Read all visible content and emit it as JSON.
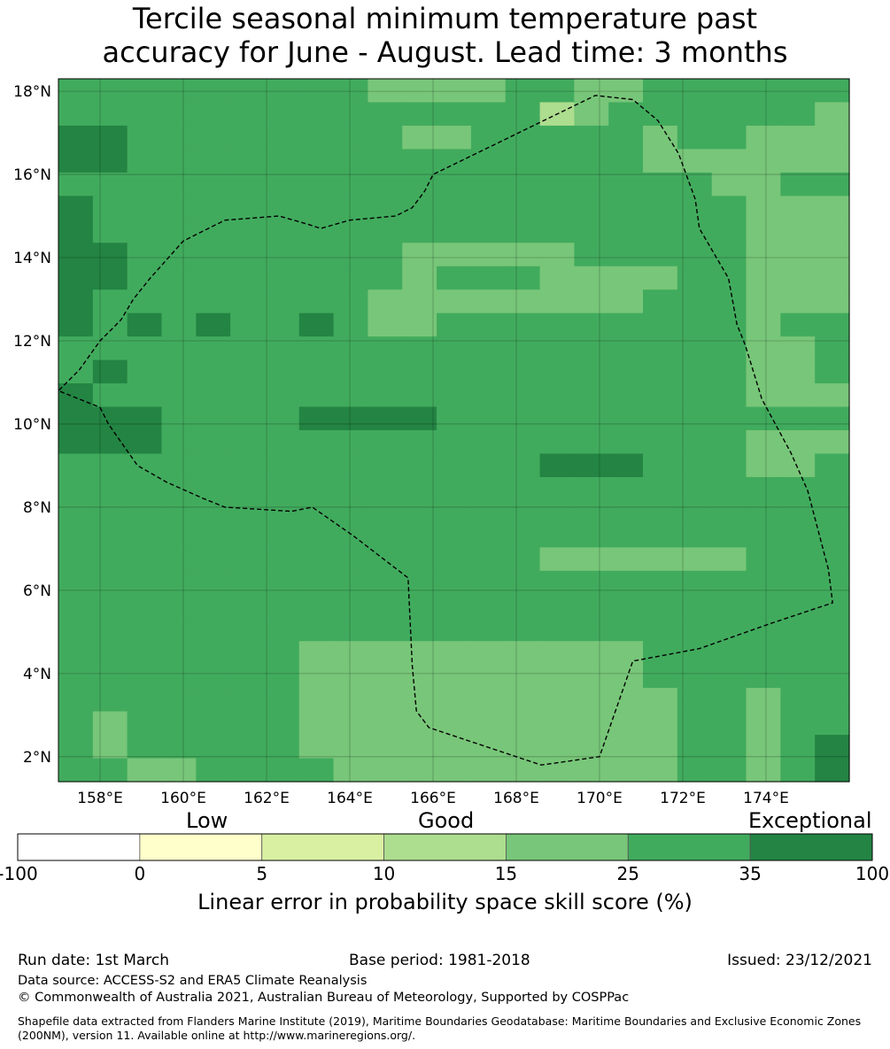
{
  "title_line1": "Tercile seasonal minimum temperature past",
  "title_line2": "accuracy for June - August. Lead time: 3 months",
  "map": {
    "lon_range": [
      157,
      176
    ],
    "lat_range": [
      1.4,
      18.3
    ],
    "x_ticks": [
      {
        "value": 158,
        "label": "158°E"
      },
      {
        "value": 160,
        "label": "160°E"
      },
      {
        "value": 162,
        "label": "162°E"
      },
      {
        "value": 164,
        "label": "164°E"
      },
      {
        "value": 166,
        "label": "166°E"
      },
      {
        "value": 168,
        "label": "168°E"
      },
      {
        "value": 170,
        "label": "170°E"
      },
      {
        "value": 172,
        "label": "172°E"
      },
      {
        "value": 174,
        "label": "174°E"
      }
    ],
    "y_ticks": [
      {
        "value": 18,
        "label": "18°N"
      },
      {
        "value": 16,
        "label": "16°N"
      },
      {
        "value": 14,
        "label": "14°N"
      },
      {
        "value": 12,
        "label": "12°N"
      },
      {
        "value": 10,
        "label": "10°N"
      },
      {
        "value": 8,
        "label": "8°N"
      },
      {
        "value": 6,
        "label": "6°N"
      },
      {
        "value": 4,
        "label": "4°N"
      },
      {
        "value": 2,
        "label": "2°N"
      }
    ],
    "gridlines": true,
    "cell_columns": 23,
    "cell_rows": 30,
    "cell_value_scale": "0=<0, 1=0-5, 2=5-10, 3=10-15, 4=15-25, 5=25-35, 6=35-100",
    "cells": [
      "55555555544445544555555",
      "55555555555555345555554",
      "66555555554455555455444",
      "66555555555555555444444",
      "55555555555555555554455",
      "65555555555555555555444",
      "65555555555555555555444",
      "66555555554444455555444",
      "66555555554555444455444",
      "65555555544444444555444",
      "65656556544555555555455",
      "55555555555555555555445",
      "56555555555555555555445",
      "65555555555555555555444",
      "66655556666555555555555",
      "66655555555555555555444",
      "55555555555555666555445",
      "55555555555555555555555",
      "55555555555555555555555",
      "55555555555555555555555",
      "55555555555555444444555",
      "55555555555555555555555",
      "55555555555555555555555",
      "55555555555555555555555",
      "55555554444444444555555",
      "55555554444444444555555",
      "55555554444444444455455",
      "54555554444444444455455",
      "54555554444444444455456",
      "55445555444444444455456"
    ],
    "dateline_note": "",
    "boundary_lon_lat": [
      [
        158.0,
        10.4
      ],
      [
        158.2,
        10.0
      ],
      [
        158.9,
        9.0
      ],
      [
        159.6,
        8.6
      ],
      [
        160.5,
        8.2
      ],
      [
        161.0,
        8.0
      ],
      [
        162.6,
        7.9
      ],
      [
        163.1,
        8.0
      ],
      [
        164.1,
        7.3
      ],
      [
        165.4,
        6.3
      ],
      [
        165.5,
        4.2
      ],
      [
        165.6,
        3.1
      ],
      [
        165.9,
        2.7
      ],
      [
        168.6,
        1.8
      ],
      [
        170.0,
        2.0
      ],
      [
        170.8,
        4.3
      ],
      [
        172.4,
        4.6
      ],
      [
        174.1,
        5.2
      ],
      [
        175.6,
        5.7
      ],
      [
        175.5,
        6.5
      ],
      [
        175.0,
        8.4
      ],
      [
        174.6,
        9.3
      ],
      [
        173.9,
        10.6
      ],
      [
        173.5,
        11.9
      ],
      [
        173.3,
        12.4
      ],
      [
        173.1,
        13.5
      ],
      [
        172.4,
        14.7
      ],
      [
        172.3,
        15.4
      ],
      [
        171.9,
        16.5
      ],
      [
        171.4,
        17.3
      ],
      [
        170.8,
        17.8
      ],
      [
        169.9,
        17.9
      ],
      [
        166.0,
        16.0
      ],
      [
        165.8,
        15.6
      ],
      [
        165.5,
        15.2
      ],
      [
        165.1,
        15.0
      ],
      [
        164.0,
        14.9
      ],
      [
        163.3,
        14.7
      ],
      [
        163.0,
        14.8
      ],
      [
        162.3,
        15.0
      ],
      [
        161.0,
        14.9
      ],
      [
        160.0,
        14.4
      ],
      [
        159.2,
        13.5
      ],
      [
        158.8,
        13.0
      ],
      [
        158.5,
        12.5
      ],
      [
        158.0,
        12.0
      ],
      [
        157.5,
        11.3
      ],
      [
        157.0,
        10.8
      ],
      [
        158.0,
        10.4
      ]
    ]
  },
  "colorbar": {
    "category_low": "Low",
    "category_good": "Good",
    "category_exceptional": "Exceptional",
    "bins": [
      {
        "from": "-100",
        "to": "0",
        "color": "#ffffff"
      },
      {
        "from": "0",
        "to": "5",
        "color": "#ffffcc"
      },
      {
        "from": "5",
        "to": "10",
        "color": "#d9f0a3"
      },
      {
        "from": "10",
        "to": "15",
        "color": "#addd8e"
      },
      {
        "from": "15",
        "to": "25",
        "color": "#78c679"
      },
      {
        "from": "25",
        "to": "35",
        "color": "#41ab5d"
      },
      {
        "from": "35",
        "to": "100",
        "color": "#238443"
      }
    ],
    "tick_labels": [
      "-100",
      "0",
      "5",
      "10",
      "15",
      "25",
      "35",
      "100"
    ],
    "label": "Linear error in probability space skill score (%)"
  },
  "footer": {
    "run_date": "Run date: 1st March",
    "base_period": "Base period: 1981-2018",
    "issued": "Issued: 23/12/2021",
    "data_source": "Data source: ACCESS-S2 and ERA5 Climate Reanalysis",
    "copyright": "© Commonwealth of Australia 2021, Australian Bureau of Meteorology, Supported by COSPPac",
    "shapefile_note": "Shapefile data extracted from Flanders Marine Institute (2019), Maritime Boundaries Geodatabase: Maritime Boundaries and Exclusive Economic Zones (200NM), version 11. Available online at http://www.marineregions.org/."
  }
}
